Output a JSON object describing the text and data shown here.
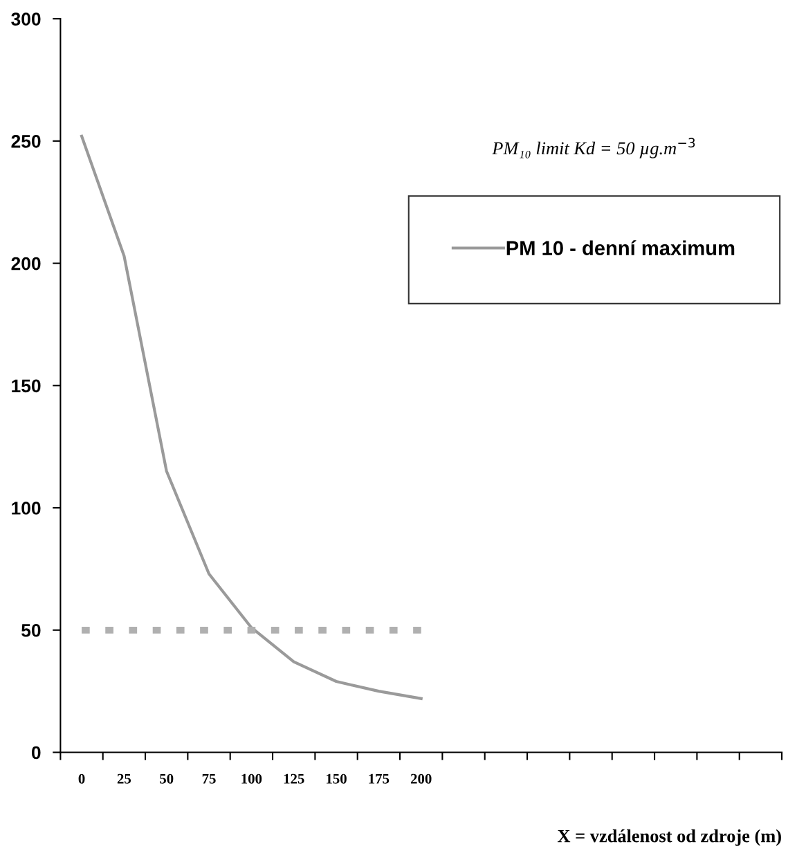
{
  "chart_data": {
    "type": "line",
    "categories": [
      "0",
      "25",
      "50",
      "75",
      "100",
      "125",
      "150",
      "175",
      "200",
      null,
      null,
      null,
      null,
      null,
      null,
      null,
      null
    ],
    "series": [
      {
        "name": "PM 10 - denní maximum",
        "color": "#9a9a9a",
        "line_style": "solid",
        "values": [
          252,
          203,
          115,
          73,
          51,
          37,
          29,
          25,
          22,
          null,
          null,
          null,
          null,
          null,
          null,
          null,
          null
        ]
      },
      {
        "color": "#b0b0b0",
        "line_style": "dashed",
        "values": [
          50,
          50,
          50,
          50,
          50,
          50,
          50,
          50,
          50,
          null,
          null,
          null,
          null,
          null,
          null,
          null,
          null
        ]
      }
    ],
    "ylim": [
      0,
      300
    ],
    "yticks": [
      0,
      50,
      100,
      150,
      200,
      250,
      300
    ],
    "xlabel": "X = vzdálenost od zdroje (m)",
    "annotations": [
      "PM₁₀ limit Kd = 50 µg.m$^{−3}$"
    ],
    "legend": "right",
    "grid": false,
    "marker": "none"
  }
}
